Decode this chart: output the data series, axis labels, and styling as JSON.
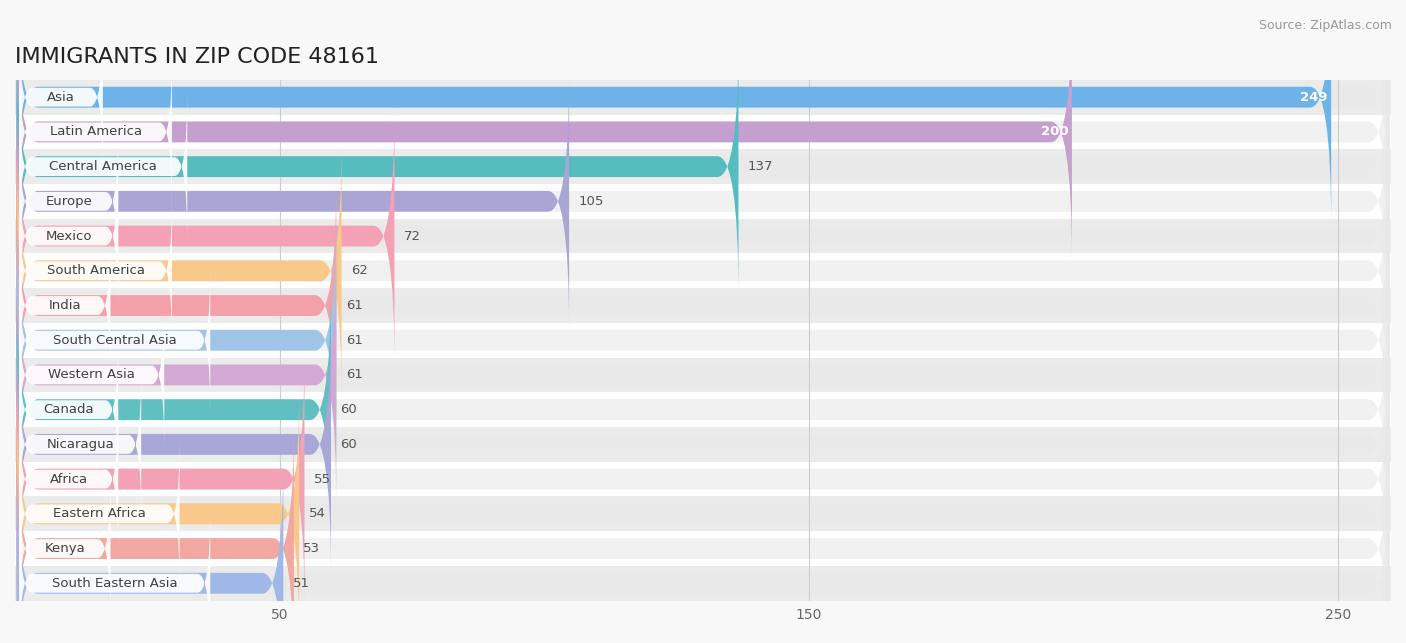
{
  "title": "IMMIGRANTS IN ZIP CODE 48161",
  "source": "Source: ZipAtlas.com",
  "categories": [
    "Asia",
    "Latin America",
    "Central America",
    "Europe",
    "Mexico",
    "South America",
    "India",
    "South Central Asia",
    "Western Asia",
    "Canada",
    "Nicaragua",
    "Africa",
    "Eastern Africa",
    "Kenya",
    "South Eastern Asia"
  ],
  "values": [
    249,
    200,
    137,
    105,
    72,
    62,
    61,
    61,
    61,
    60,
    60,
    55,
    54,
    53,
    51
  ],
  "colors": [
    "#6db3e8",
    "#c49fd0",
    "#55bcc0",
    "#a9a5d4",
    "#f4a0b5",
    "#f8c98a",
    "#f4a0a8",
    "#a0c4e8",
    "#d4a8d4",
    "#60bfc0",
    "#a8a8d8",
    "#f4a0b5",
    "#f8c98a",
    "#f0a8a0",
    "#a0b8e8"
  ],
  "background_color": "#f8f8f8",
  "bar_row_bg_even": "#ebebeb",
  "bar_row_bg_odd": "#ffffff",
  "xlim_min": 0,
  "xlim_max": 260,
  "xticks": [
    50,
    150,
    250
  ],
  "title_fontsize": 16,
  "label_fontsize": 9.5,
  "value_fontsize": 9.5,
  "white_text_threshold": 150
}
